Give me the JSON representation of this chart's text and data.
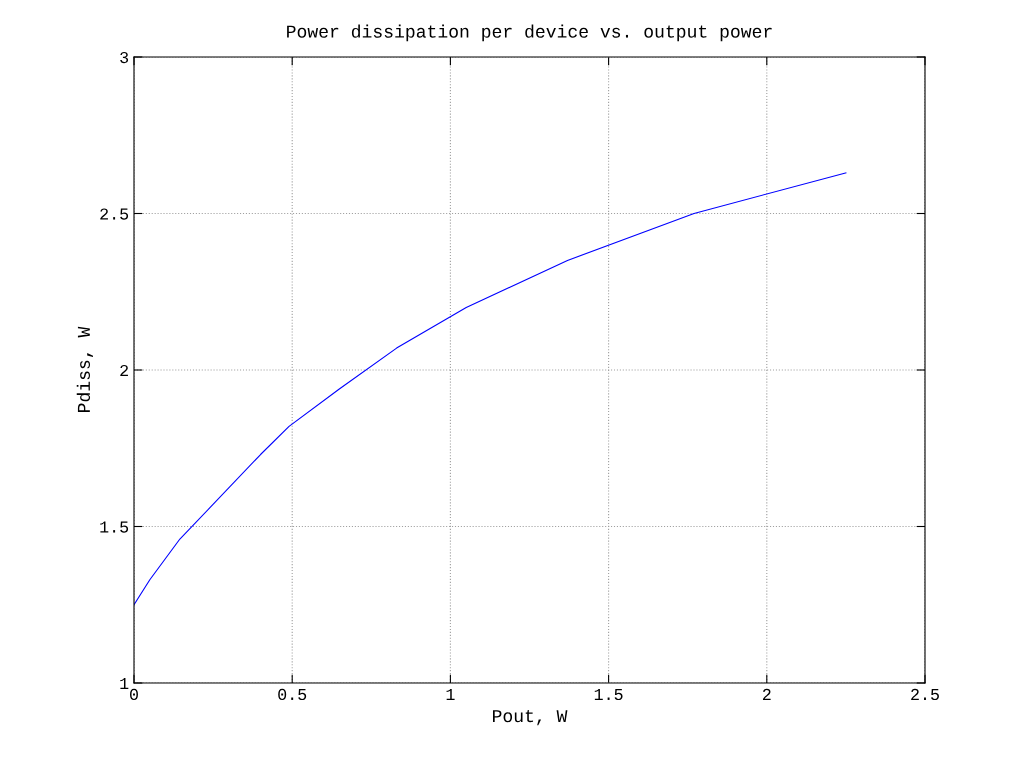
{
  "chart_data": {
    "type": "line",
    "title": "Power dissipation per device vs. output power",
    "xlabel": "Pout, W",
    "ylabel": "Pdiss, W",
    "x": [
      0,
      0.05,
      0.145,
      0.24,
      0.4,
      0.49,
      0.65,
      0.83,
      1.05,
      1.37,
      1.77,
      2.25
    ],
    "series": [
      {
        "color": "#0000ff",
        "values": [
          1.25,
          1.33,
          1.46,
          1.56,
          1.73,
          1.82,
          1.94,
          2.07,
          2.2,
          2.35,
          2.5,
          2.63
        ]
      }
    ],
    "xlim": [
      0,
      2.5
    ],
    "xticks": [
      0,
      0.5,
      1,
      1.5,
      2,
      2.5
    ],
    "ylim": [
      1,
      3
    ],
    "yticks": [
      1,
      1.5,
      2,
      2.5,
      3
    ],
    "grid": true,
    "line_style": "solid",
    "marker": "none",
    "legend": false
  }
}
